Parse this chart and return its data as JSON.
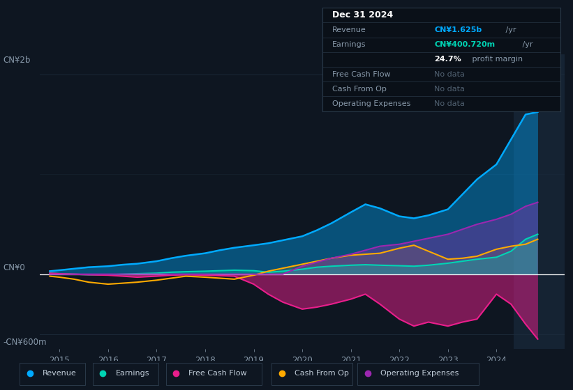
{
  "bg_color": "#0e1621",
  "chart_bg": "#0e1621",
  "grid_color": "#1e2d3d",
  "zero_line_color": "#ffffff",
  "ylabel_top": "CN¥2b",
  "ylabel_bottom": "-CN¥600m",
  "ylabel_zero": "CN¥0",
  "xlim": [
    2014.6,
    2025.4
  ],
  "ylim": [
    -750,
    2200
  ],
  "years": [
    2014.8,
    2015.0,
    2015.3,
    2015.6,
    2016.0,
    2016.3,
    2016.6,
    2017.0,
    2017.3,
    2017.6,
    2018.0,
    2018.3,
    2018.6,
    2019.0,
    2019.3,
    2019.6,
    2020.0,
    2020.3,
    2020.6,
    2021.0,
    2021.3,
    2021.6,
    2022.0,
    2022.3,
    2022.6,
    2023.0,
    2023.3,
    2023.6,
    2024.0,
    2024.3,
    2024.6,
    2024.85
  ],
  "revenue": [
    30,
    40,
    55,
    70,
    80,
    95,
    105,
    130,
    160,
    185,
    210,
    240,
    265,
    290,
    310,
    340,
    380,
    440,
    510,
    620,
    700,
    660,
    580,
    560,
    590,
    650,
    800,
    950,
    1100,
    1350,
    1600,
    1625
  ],
  "earnings": [
    10,
    5,
    0,
    -5,
    -5,
    0,
    5,
    10,
    20,
    25,
    30,
    35,
    40,
    35,
    20,
    30,
    50,
    70,
    80,
    90,
    95,
    90,
    85,
    80,
    90,
    110,
    130,
    150,
    170,
    230,
    350,
    400
  ],
  "free_cash_flow": [
    10,
    5,
    0,
    -5,
    -10,
    -20,
    -30,
    -20,
    -10,
    -5,
    -10,
    -15,
    -20,
    -100,
    -200,
    -280,
    -350,
    -330,
    -300,
    -250,
    -200,
    -300,
    -450,
    -520,
    -480,
    -520,
    -480,
    -450,
    -200,
    -300,
    -500,
    -650
  ],
  "cash_from_op": [
    -20,
    -30,
    -50,
    -80,
    -100,
    -90,
    -80,
    -60,
    -40,
    -20,
    -30,
    -40,
    -50,
    -10,
    30,
    60,
    100,
    130,
    160,
    190,
    200,
    210,
    260,
    290,
    230,
    150,
    160,
    180,
    250,
    280,
    300,
    350
  ],
  "operating_expenses": [
    0,
    0,
    0,
    0,
    0,
    0,
    0,
    0,
    0,
    0,
    0,
    0,
    0,
    0,
    0,
    0,
    80,
    120,
    160,
    200,
    240,
    280,
    300,
    330,
    360,
    400,
    450,
    500,
    550,
    600,
    680,
    720
  ],
  "revenue_color": "#00aaff",
  "earnings_color": "#00d4b4",
  "fcf_color": "#e91e8c",
  "cashop_color": "#ffaa00",
  "opex_color": "#9c27b0",
  "revenue_fill_alpha": 0.4,
  "fcf_fill_alpha": 0.5,
  "cashop_fill_alpha": 0.3,
  "opex_fill_alpha": 0.35,
  "earnings_fill_alpha": 0.3,
  "highlight_start": 2024.35,
  "legend_items": [
    {
      "label": "Revenue",
      "color": "#00aaff"
    },
    {
      "label": "Earnings",
      "color": "#00d4b4"
    },
    {
      "label": "Free Cash Flow",
      "color": "#e91e8c"
    },
    {
      "label": "Cash From Op",
      "color": "#ffaa00"
    },
    {
      "label": "Operating Expenses",
      "color": "#9c27b0"
    }
  ],
  "info_box": {
    "title": "Dec 31 2024",
    "revenue_label": "Revenue",
    "revenue_value": "CN¥1.625b",
    "revenue_unit": " /yr",
    "earnings_label": "Earnings",
    "earnings_value": "CN¥400.720m",
    "earnings_unit": " /yr",
    "margin_value": "24.7%",
    "margin_text": " profit margin",
    "fcf_label": "Free Cash Flow",
    "cashop_label": "Cash From Op",
    "opex_label": "Operating Expenses",
    "no_data": "No data",
    "box_bg": "#0a1018",
    "box_border": "#2a3a4a",
    "title_color": "#ffffff",
    "label_color": "#8899aa",
    "value_color_revenue": "#00aaff",
    "value_color_earnings": "#00d4b4",
    "nodata_color": "#506070"
  }
}
